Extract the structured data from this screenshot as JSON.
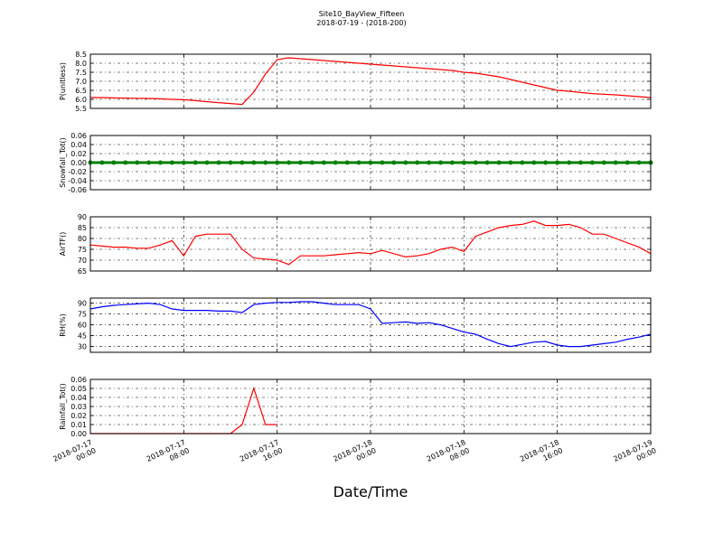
{
  "title": "Site10_BayView_Fifteen",
  "subtitle": "2018-07-19 - (2018-200)",
  "x_axis": {
    "label": "Date/Time",
    "xlim": [
      "2018-07-17 00:00",
      "2018-07-19 00:00"
    ],
    "xticks": [
      "2018-07-17 00:00",
      "2018-07-17 08:00",
      "2018-07-17 16:00",
      "2018-07-18 00:00",
      "2018-07-18 08:00",
      "2018-07-18 16:00",
      "2018-07-19 00:00"
    ]
  },
  "chart_data": [
    {
      "type": "line",
      "ylabel": "P(unitless)",
      "color": "#ff0000",
      "grid": true,
      "ylim": [
        5.5,
        8.5
      ],
      "yticks": [
        5.5,
        {
          "value": 6,
          "label": "6.0"
        },
        6.5,
        {
          "value": 7,
          "label": "7.0"
        },
        7.5,
        {
          "value": 8,
          "label": "8.0"
        },
        8.5
      ],
      "x": [
        "2018-07-17 00:00",
        "2018-07-17 01:00",
        "2018-07-17 02:00",
        "2018-07-17 03:00",
        "2018-07-17 04:00",
        "2018-07-17 05:00",
        "2018-07-17 06:00",
        "2018-07-17 07:00",
        "2018-07-17 08:00",
        "2018-07-17 09:00",
        "2018-07-17 10:00",
        "2018-07-17 11:00",
        "2018-07-17 12:00",
        "2018-07-17 13:00",
        "2018-07-17 14:00",
        "2018-07-17 15:00",
        "2018-07-17 16:00",
        "2018-07-17 17:00",
        "2018-07-17 18:00",
        "2018-07-17 19:00",
        "2018-07-17 20:00",
        "2018-07-17 21:00",
        "2018-07-17 22:00",
        "2018-07-17 23:00",
        "2018-07-18 00:00",
        "2018-07-18 01:00",
        "2018-07-18 02:00",
        "2018-07-18 03:00",
        "2018-07-18 04:00",
        "2018-07-18 05:00",
        "2018-07-18 06:00",
        "2018-07-18 07:00",
        "2018-07-18 08:00",
        "2018-07-18 09:00",
        "2018-07-18 10:00",
        "2018-07-18 11:00",
        "2018-07-18 12:00",
        "2018-07-18 13:00",
        "2018-07-18 14:00",
        "2018-07-18 15:00",
        "2018-07-18 16:00",
        "2018-07-18 17:00",
        "2018-07-18 18:00",
        "2018-07-18 19:00",
        "2018-07-18 20:00",
        "2018-07-18 21:00",
        "2018-07-18 22:00",
        "2018-07-18 23:00",
        "2018-07-19 00:00"
      ],
      "values": [
        6.1,
        6.1,
        6.08,
        6.07,
        6.06,
        6.05,
        6.03,
        6.0,
        5.98,
        5.93,
        5.87,
        5.82,
        5.77,
        5.72,
        6.4,
        7.4,
        8.2,
        8.3,
        8.25,
        8.2,
        8.15,
        8.1,
        8.05,
        8.0,
        7.95,
        7.9,
        7.85,
        7.8,
        7.75,
        7.7,
        7.65,
        7.6,
        7.5,
        7.45,
        7.35,
        7.25,
        7.1,
        6.95,
        6.8,
        6.65,
        6.5,
        6.45,
        6.38,
        6.32,
        6.28,
        6.25,
        6.2,
        6.15,
        6.1
      ]
    },
    {
      "type": "line",
      "ylabel": "Snowfall_Tot()",
      "color": "#008000",
      "markers": true,
      "grid": true,
      "ylim": [
        -0.06,
        0.06
      ],
      "yticks": [
        -0.06,
        -0.04,
        -0.02,
        {
          "value": 0,
          "label": "0.00"
        },
        0.02,
        0.04,
        0.06
      ],
      "x": [
        "2018-07-17 00:00",
        "2018-07-17 01:00",
        "2018-07-17 02:00",
        "2018-07-17 03:00",
        "2018-07-17 04:00",
        "2018-07-17 05:00",
        "2018-07-17 06:00",
        "2018-07-17 07:00",
        "2018-07-17 08:00",
        "2018-07-17 09:00",
        "2018-07-17 10:00",
        "2018-07-17 11:00",
        "2018-07-17 12:00",
        "2018-07-17 13:00",
        "2018-07-17 14:00",
        "2018-07-17 15:00",
        "2018-07-17 16:00",
        "2018-07-17 17:00",
        "2018-07-17 18:00",
        "2018-07-17 19:00",
        "2018-07-17 20:00",
        "2018-07-17 21:00",
        "2018-07-17 22:00",
        "2018-07-17 23:00",
        "2018-07-18 00:00",
        "2018-07-18 01:00",
        "2018-07-18 02:00",
        "2018-07-18 03:00",
        "2018-07-18 04:00",
        "2018-07-18 05:00",
        "2018-07-18 06:00",
        "2018-07-18 07:00",
        "2018-07-18 08:00",
        "2018-07-18 09:00",
        "2018-07-18 10:00",
        "2018-07-18 11:00",
        "2018-07-18 12:00",
        "2018-07-18 13:00",
        "2018-07-18 14:00",
        "2018-07-18 15:00",
        "2018-07-18 16:00",
        "2018-07-18 17:00",
        "2018-07-18 18:00",
        "2018-07-18 19:00",
        "2018-07-18 20:00",
        "2018-07-18 21:00",
        "2018-07-18 22:00",
        "2018-07-18 23:00",
        "2018-07-19 00:00"
      ],
      "values": [
        0,
        0,
        0,
        0,
        0,
        0,
        0,
        0,
        0,
        0,
        0,
        0,
        0,
        0,
        0,
        0,
        0,
        0,
        0,
        0,
        0,
        0,
        0,
        0,
        0,
        0,
        0,
        0,
        0,
        0,
        0,
        0,
        0,
        0,
        0,
        0,
        0,
        0,
        0,
        0,
        0,
        0,
        0,
        0,
        0,
        0,
        0,
        0,
        0
      ]
    },
    {
      "type": "line",
      "ylabel": "AirTF()",
      "color": "#ff0000",
      "grid": true,
      "ylim": [
        65,
        90
      ],
      "yticks": [
        65,
        70,
        75,
        80,
        85,
        90
      ],
      "x": [
        "2018-07-17 00:00",
        "2018-07-17 01:00",
        "2018-07-17 02:00",
        "2018-07-17 03:00",
        "2018-07-17 04:00",
        "2018-07-17 05:00",
        "2018-07-17 06:00",
        "2018-07-17 07:00",
        "2018-07-17 08:00",
        "2018-07-17 09:00",
        "2018-07-17 10:00",
        "2018-07-17 11:00",
        "2018-07-17 12:00",
        "2018-07-17 13:00",
        "2018-07-17 14:00",
        "2018-07-17 15:00",
        "2018-07-17 16:00",
        "2018-07-17 17:00",
        "2018-07-17 18:00",
        "2018-07-17 19:00",
        "2018-07-17 20:00",
        "2018-07-17 21:00",
        "2018-07-17 22:00",
        "2018-07-17 23:00",
        "2018-07-18 00:00",
        "2018-07-18 01:00",
        "2018-07-18 02:00",
        "2018-07-18 03:00",
        "2018-07-18 04:00",
        "2018-07-18 05:00",
        "2018-07-18 06:00",
        "2018-07-18 07:00",
        "2018-07-18 08:00",
        "2018-07-18 09:00",
        "2018-07-18 10:00",
        "2018-07-18 11:00",
        "2018-07-18 12:00",
        "2018-07-18 13:00",
        "2018-07-18 14:00",
        "2018-07-18 15:00",
        "2018-07-18 16:00",
        "2018-07-18 17:00",
        "2018-07-18 18:00",
        "2018-07-18 19:00",
        "2018-07-18 20:00",
        "2018-07-18 21:00",
        "2018-07-18 22:00",
        "2018-07-18 23:00",
        "2018-07-19 00:00"
      ],
      "values": [
        77,
        76.5,
        76,
        76,
        75.5,
        75.5,
        77,
        79,
        72,
        81,
        82,
        82,
        82,
        75,
        71,
        70.5,
        70,
        68,
        72,
        72,
        72,
        72.5,
        73,
        73.5,
        73,
        74.5,
        73,
        71.5,
        72,
        73,
        75,
        76,
        74,
        81,
        83,
        85,
        86,
        86.5,
        88,
        86,
        86,
        86.5,
        85,
        82,
        82,
        80,
        78,
        76,
        73
      ]
    },
    {
      "type": "line",
      "ylabel": "RH(%)",
      "color": "#0000ff",
      "grid": true,
      "ylim": [
        22,
        97
      ],
      "yticks": [
        30,
        45,
        60,
        75,
        90
      ],
      "x": [
        "2018-07-17 00:00",
        "2018-07-17 01:00",
        "2018-07-17 02:00",
        "2018-07-17 03:00",
        "2018-07-17 04:00",
        "2018-07-17 05:00",
        "2018-07-17 06:00",
        "2018-07-17 07:00",
        "2018-07-17 08:00",
        "2018-07-17 09:00",
        "2018-07-17 10:00",
        "2018-07-17 11:00",
        "2018-07-17 12:00",
        "2018-07-17 13:00",
        "2018-07-17 14:00",
        "2018-07-17 15:00",
        "2018-07-17 16:00",
        "2018-07-17 17:00",
        "2018-07-17 18:00",
        "2018-07-17 19:00",
        "2018-07-17 20:00",
        "2018-07-17 21:00",
        "2018-07-17 22:00",
        "2018-07-17 23:00",
        "2018-07-18 00:00",
        "2018-07-18 01:00",
        "2018-07-18 02:00",
        "2018-07-18 03:00",
        "2018-07-18 04:00",
        "2018-07-18 05:00",
        "2018-07-18 06:00",
        "2018-07-18 07:00",
        "2018-07-18 08:00",
        "2018-07-18 09:00",
        "2018-07-18 10:00",
        "2018-07-18 11:00",
        "2018-07-18 12:00",
        "2018-07-18 13:00",
        "2018-07-18 14:00",
        "2018-07-18 15:00",
        "2018-07-18 16:00",
        "2018-07-18 17:00",
        "2018-07-18 18:00",
        "2018-07-18 19:00",
        "2018-07-18 20:00",
        "2018-07-18 21:00",
        "2018-07-18 22:00",
        "2018-07-18 23:00",
        "2018-07-19 00:00"
      ],
      "values": [
        82,
        85,
        87,
        88,
        89,
        90,
        88,
        82,
        80,
        80,
        80,
        79,
        79,
        77,
        88,
        90,
        91,
        91,
        92,
        92,
        90,
        88,
        88,
        88,
        82,
        62,
        63,
        64,
        62,
        63,
        60,
        55,
        50,
        47,
        40,
        34,
        30,
        33,
        36,
        37,
        32,
        30,
        30,
        32,
        34,
        36,
        40,
        43,
        47
      ]
    },
    {
      "type": "line",
      "ylabel": "Rainfall_Tot()",
      "color": "#ff0000",
      "grid": true,
      "ylim": [
        0,
        0.06
      ],
      "yticks": [
        {
          "value": 0,
          "label": "0.00"
        },
        0.01,
        0.02,
        0.03,
        0.04,
        0.05,
        0.06
      ],
      "x": [
        "2018-07-17 00:00",
        "2018-07-17 01:00",
        "2018-07-17 02:00",
        "2018-07-17 03:00",
        "2018-07-17 04:00",
        "2018-07-17 05:00",
        "2018-07-17 06:00",
        "2018-07-17 07:00",
        "2018-07-17 08:00",
        "2018-07-17 09:00",
        "2018-07-17 10:00",
        "2018-07-17 11:00",
        "2018-07-17 12:00",
        "2018-07-17 13:00",
        "2018-07-17 14:00",
        "2018-07-17 15:00",
        "2018-07-17 16:00",
        "2018-07-17 17:00",
        "2018-07-17 18:00",
        "2018-07-17 19:00",
        "2018-07-17 20:00",
        "2018-07-17 21:00",
        "2018-07-17 22:00",
        "2018-07-17 23:00",
        "2018-07-18 00:00",
        "2018-07-18 01:00",
        "2018-07-18 02:00",
        "2018-07-18 03:00",
        "2018-07-18 04:00",
        "2018-07-18 05:00",
        "2018-07-18 06:00",
        "2018-07-18 07:00",
        "2018-07-18 08:00",
        "2018-07-18 09:00",
        "2018-07-18 10:00",
        "2018-07-18 11:00",
        "2018-07-18 12:00",
        "2018-07-18 13:00",
        "2018-07-18 14:00",
        "2018-07-18 15:00",
        "2018-07-18 16:00",
        "2018-07-18 17:00",
        "2018-07-18 18:00",
        "2018-07-18 19:00",
        "2018-07-18 20:00",
        "2018-07-18 21:00",
        "2018-07-18 22:00",
        "2018-07-18 23:00",
        "2018-07-19 00:00"
      ],
      "values": [
        0,
        0,
        0,
        0,
        0,
        0,
        0,
        0,
        0,
        0,
        0,
        0,
        0,
        0.01,
        0.05,
        0.01,
        0.01,
        null,
        null,
        null,
        null,
        null,
        null,
        null,
        null,
        null,
        null,
        null,
        null,
        null,
        null,
        null,
        null,
        null,
        null,
        null,
        null,
        null,
        null,
        null,
        null,
        null,
        null,
        null,
        null,
        null,
        null,
        null,
        null
      ]
    }
  ]
}
